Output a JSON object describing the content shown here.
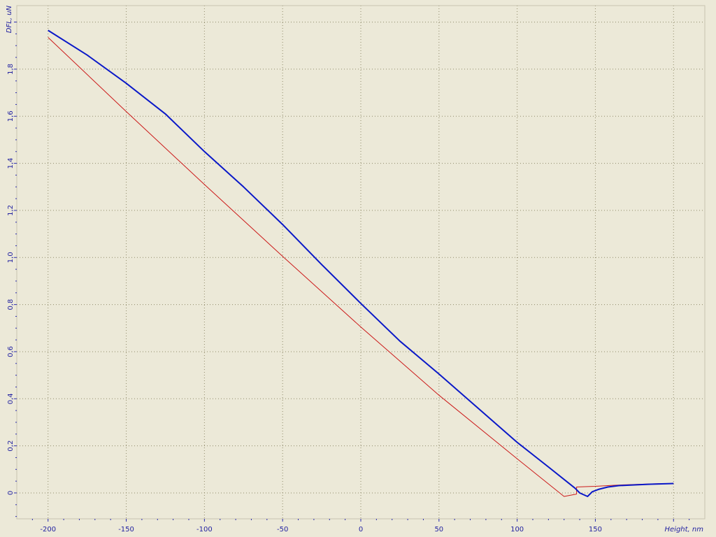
{
  "chart_data": {
    "type": "line",
    "xlabel": "Height, nm",
    "ylabel": "DFL, uN",
    "xlim": [
      -220,
      220
    ],
    "ylim": [
      -0.11,
      2.07
    ],
    "x_ticks": [
      {
        "value": -200,
        "label": "-200"
      },
      {
        "value": -150,
        "label": "-150"
      },
      {
        "value": -100,
        "label": "-100"
      },
      {
        "value": -50,
        "label": "-50"
      },
      {
        "value": 0,
        "label": "0"
      },
      {
        "value": 50,
        "label": "50"
      },
      {
        "value": 100,
        "label": "100"
      },
      {
        "value": 150,
        "label": "150"
      }
    ],
    "y_ticks": [
      {
        "value": 0,
        "label": "0"
      },
      {
        "value": 0.2,
        "label": "0,2"
      },
      {
        "value": 0.4,
        "label": "0,4"
      },
      {
        "value": 0.6,
        "label": "0,6"
      },
      {
        "value": 0.8,
        "label": "0,8"
      },
      {
        "value": 1.0,
        "label": "1,0"
      },
      {
        "value": 1.2,
        "label": "1,2"
      },
      {
        "value": 1.4,
        "label": "1,4"
      },
      {
        "value": 1.6,
        "label": "1,6"
      },
      {
        "value": 1.8,
        "label": "1,8"
      }
    ],
    "grid": true,
    "series": [
      {
        "color": "#cc1a1a",
        "width": 1,
        "x": [
          -200,
          -150,
          -100,
          -50,
          0,
          50,
          100,
          130,
          138,
          138,
          145,
          150,
          160,
          170,
          180,
          190,
          200
        ],
        "y": [
          1.935,
          1.62,
          1.31,
          1.005,
          0.705,
          0.415,
          0.145,
          -0.015,
          -0.005,
          0.025,
          0.027,
          0.028,
          0.032,
          0.035,
          0.037,
          0.039,
          0.04
        ]
      },
      {
        "color": "#0a18c8",
        "width": 2,
        "x": [
          -200,
          -175,
          -150,
          -125,
          -100,
          -75,
          -50,
          -25,
          0,
          25,
          50,
          75,
          100,
          120,
          137,
          140,
          145,
          148,
          152,
          158,
          165,
          175,
          185,
          200
        ],
        "y": [
          1.965,
          1.86,
          1.74,
          1.61,
          1.45,
          1.3,
          1.14,
          0.97,
          0.805,
          0.645,
          0.505,
          0.36,
          0.215,
          0.11,
          0.02,
          0.0,
          -0.015,
          0.005,
          0.015,
          0.025,
          0.031,
          0.034,
          0.037,
          0.04
        ]
      }
    ]
  }
}
